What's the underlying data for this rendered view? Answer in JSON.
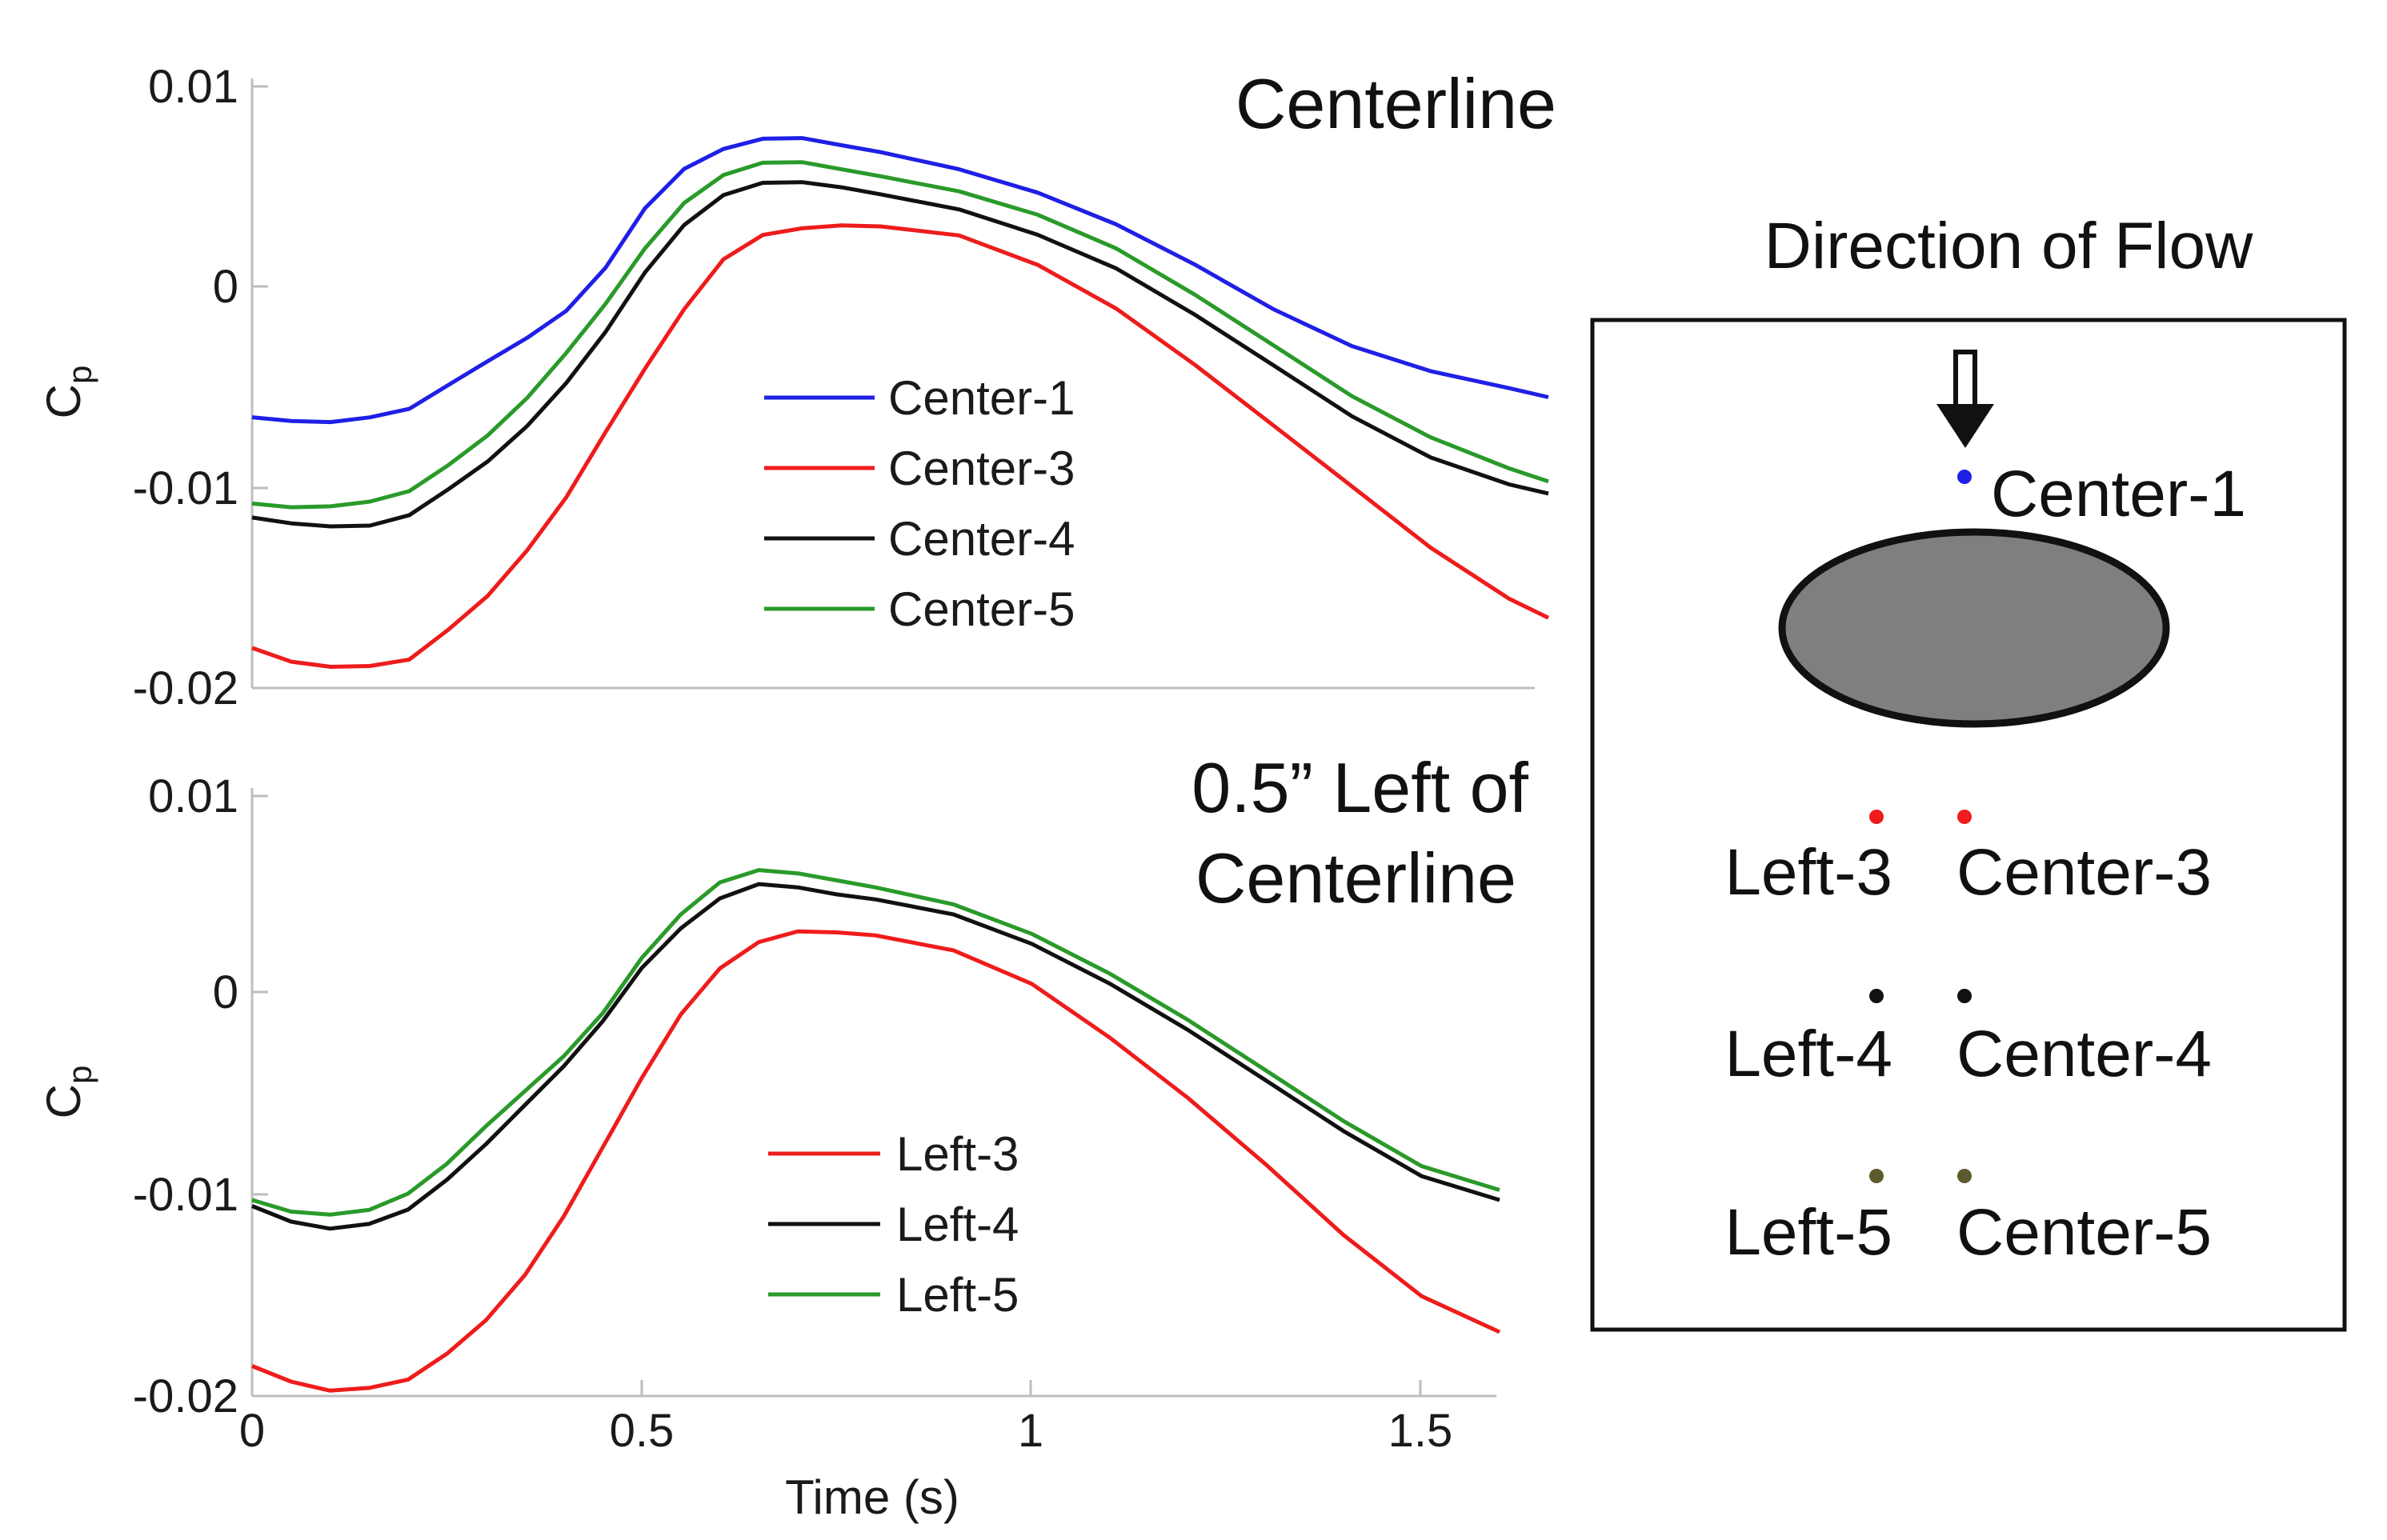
{
  "colors": {
    "blue": "#1f1fe6",
    "red": "#ee1c1c",
    "black": "#111111",
    "green": "#2a9a2a",
    "olive": "#5b5b2e",
    "cylinder_fill": "#7f7f7f"
  },
  "chart_data": [
    {
      "type": "line",
      "id": "top",
      "title": "Centerline",
      "xlabel": "",
      "ylabel": "C",
      "ylabel_sub": "p",
      "xlim": [
        0,
        1.65
      ],
      "ylim": [
        -0.02,
        0.01
      ],
      "yticks": [
        0.01,
        0,
        -0.01,
        -0.02
      ],
      "ytick_labels": [
        "0.01",
        "0",
        "-0.01",
        "-0.02"
      ],
      "grid": false,
      "legend_position": "center",
      "series": [
        {
          "name": "Center-1",
          "color": "#1f1fe6",
          "x": [
            0,
            0.05,
            0.1,
            0.15,
            0.2,
            0.25,
            0.3,
            0.35,
            0.4,
            0.45,
            0.5,
            0.55,
            0.6,
            0.65,
            0.7,
            0.75,
            0.8,
            0.9,
            1.0,
            1.1,
            1.2,
            1.3,
            1.4,
            1.5,
            1.6,
            1.65
          ],
          "y": [
            -0.0065,
            -0.0067,
            -0.0068,
            -0.0066,
            -0.0062,
            -0.005,
            -0.0038,
            -0.0026,
            -0.0012,
            0.001,
            0.004,
            0.006,
            0.007,
            0.0075,
            0.0075,
            0.0071,
            0.0067,
            0.0058,
            0.0046,
            0.003,
            0.001,
            -0.0012,
            -0.003,
            -0.0042,
            -0.005,
            -0.0055
          ]
        },
        {
          "name": "Center-3",
          "color": "#ee1c1c",
          "x": [
            0,
            0.05,
            0.1,
            0.15,
            0.2,
            0.25,
            0.3,
            0.35,
            0.4,
            0.45,
            0.5,
            0.55,
            0.6,
            0.65,
            0.7,
            0.75,
            0.8,
            0.9,
            1.0,
            1.1,
            1.2,
            1.3,
            1.4,
            1.5,
            1.6,
            1.65
          ],
          "y": [
            -0.018,
            -0.0187,
            -0.019,
            -0.019,
            -0.0187,
            -0.0172,
            -0.0155,
            -0.0132,
            -0.0105,
            -0.0072,
            -0.004,
            -0.001,
            0.0015,
            0.0027,
            0.003,
            0.0031,
            0.003,
            0.0025,
            0.001,
            -0.0012,
            -0.004,
            -0.007,
            -0.01,
            -0.013,
            -0.0155,
            -0.0165
          ]
        },
        {
          "name": "Center-4",
          "color": "#111111",
          "x": [
            0,
            0.05,
            0.1,
            0.15,
            0.2,
            0.25,
            0.3,
            0.35,
            0.4,
            0.45,
            0.5,
            0.55,
            0.6,
            0.65,
            0.7,
            0.75,
            0.8,
            0.9,
            1.0,
            1.1,
            1.2,
            1.3,
            1.4,
            1.5,
            1.6,
            1.65
          ],
          "y": [
            -0.0115,
            -0.0118,
            -0.012,
            -0.012,
            -0.0115,
            -0.0102,
            -0.0088,
            -0.007,
            -0.0048,
            -0.0022,
            0.0008,
            0.0032,
            0.0047,
            0.0053,
            0.0053,
            0.005,
            0.0046,
            0.0038,
            0.0025,
            0.0008,
            -0.0015,
            -0.004,
            -0.0065,
            -0.0085,
            -0.0098,
            -0.0103
          ]
        },
        {
          "name": "Center-5",
          "color": "#2a9a2a",
          "x": [
            0,
            0.05,
            0.1,
            0.15,
            0.2,
            0.25,
            0.3,
            0.35,
            0.4,
            0.45,
            0.5,
            0.55,
            0.6,
            0.65,
            0.7,
            0.75,
            0.8,
            0.9,
            1.0,
            1.1,
            1.2,
            1.3,
            1.4,
            1.5,
            1.6,
            1.65
          ],
          "y": [
            -0.0108,
            -0.011,
            -0.011,
            -0.0108,
            -0.0103,
            -0.009,
            -0.0075,
            -0.0056,
            -0.0033,
            -0.0008,
            0.002,
            0.0043,
            0.0057,
            0.0063,
            0.0063,
            0.0059,
            0.0055,
            0.0047,
            0.0035,
            0.0018,
            -0.0005,
            -0.003,
            -0.0055,
            -0.0075,
            -0.009,
            -0.0097
          ]
        }
      ]
    },
    {
      "type": "line",
      "id": "bottom",
      "title": [
        "0.5” Left of",
        "Centerline"
      ],
      "xlabel": "Time (s)",
      "ylabel": "C",
      "ylabel_sub": "p",
      "xlim": [
        0,
        1.6
      ],
      "ylim": [
        -0.02,
        0.01
      ],
      "xticks": [
        0,
        0.5,
        1,
        1.5
      ],
      "xtick_labels": [
        "0",
        "0.5",
        "1",
        "1.5"
      ],
      "yticks": [
        0.01,
        0,
        -0.01,
        -0.02
      ],
      "ytick_labels": [
        "0.01",
        "0",
        "-0.01",
        "-0.02"
      ],
      "grid": false,
      "legend_position": "bottom-center",
      "series": [
        {
          "name": "Left-3",
          "color": "#ee1c1c",
          "x": [
            0,
            0.05,
            0.1,
            0.15,
            0.2,
            0.25,
            0.3,
            0.35,
            0.4,
            0.45,
            0.5,
            0.55,
            0.6,
            0.65,
            0.7,
            0.75,
            0.8,
            0.9,
            1.0,
            1.1,
            1.2,
            1.3,
            1.4,
            1.5,
            1.6
          ],
          "y": [
            -0.0185,
            -0.0193,
            -0.0198,
            -0.0197,
            -0.0193,
            -0.018,
            -0.0163,
            -0.014,
            -0.011,
            -0.0075,
            -0.004,
            -0.0008,
            0.0015,
            0.0028,
            0.0033,
            0.0032,
            0.003,
            0.0022,
            0.0005,
            -0.0022,
            -0.0052,
            -0.0085,
            -0.012,
            -0.015,
            -0.0168
          ]
        },
        {
          "name": "Left-4",
          "color": "#111111",
          "x": [
            0,
            0.05,
            0.1,
            0.15,
            0.2,
            0.25,
            0.3,
            0.35,
            0.4,
            0.45,
            0.5,
            0.55,
            0.6,
            0.65,
            0.7,
            0.75,
            0.8,
            0.9,
            1.0,
            1.1,
            1.2,
            1.3,
            1.4,
            1.5,
            1.6
          ],
          "y": [
            -0.0105,
            -0.0113,
            -0.0117,
            -0.0115,
            -0.0108,
            -0.0093,
            -0.0075,
            -0.0055,
            -0.0035,
            -0.0012,
            0.0015,
            0.0035,
            0.005,
            0.0057,
            0.0055,
            0.0051,
            0.0048,
            0.004,
            0.0025,
            0.0005,
            -0.0018,
            -0.0043,
            -0.0068,
            -0.009,
            -0.0102
          ]
        },
        {
          "name": "Left-5",
          "color": "#2a9a2a",
          "x": [
            0,
            0.05,
            0.1,
            0.15,
            0.2,
            0.25,
            0.3,
            0.35,
            0.4,
            0.45,
            0.5,
            0.55,
            0.6,
            0.65,
            0.7,
            0.75,
            0.8,
            0.9,
            1.0,
            1.1,
            1.2,
            1.3,
            1.4,
            1.5,
            1.6
          ],
          "y": [
            -0.0102,
            -0.0108,
            -0.011,
            -0.0108,
            -0.01,
            -0.0085,
            -0.0066,
            -0.0048,
            -0.003,
            -0.0008,
            0.002,
            0.0042,
            0.0058,
            0.0064,
            0.0062,
            0.0058,
            0.0054,
            0.0045,
            0.003,
            0.001,
            -0.0013,
            -0.0038,
            -0.0063,
            -0.0085,
            -0.0097
          ]
        }
      ]
    }
  ],
  "diagram": {
    "title": "Direction of Flow",
    "labels": {
      "center1": "Center-1",
      "left3": "Left-3",
      "center3": "Center-3",
      "left4": "Left-4",
      "center4": "Center-4",
      "left5": "Left-5",
      "center5": "Center-5"
    }
  }
}
